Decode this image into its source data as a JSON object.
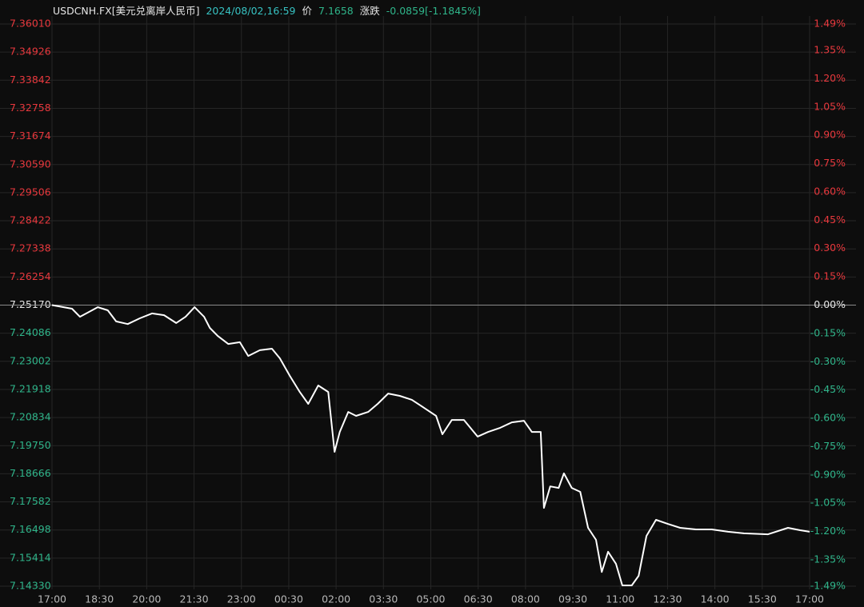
{
  "chart_data": {
    "type": "line",
    "header": {
      "symbol": "USDCNH.FX[美元兑离岸人民币]",
      "datetime": "2024/08/02,16:59",
      "price_label": "价",
      "price": "7.1658",
      "change_label": "涨跌",
      "change": "-0.0859[-1.1845%]"
    },
    "x": [
      0,
      38,
      53,
      68,
      87,
      106,
      122,
      144,
      167,
      190,
      213,
      236,
      254,
      271,
      289,
      300,
      315,
      335,
      357,
      373,
      395,
      418,
      433,
      452,
      471,
      487,
      506,
      525,
      537,
      547,
      563,
      578,
      601,
      619,
      639,
      661,
      684,
      707,
      730,
      742,
      760,
      783,
      809,
      829,
      852,
      874,
      897,
      912,
      929,
      935,
      947,
      963,
      973,
      988,
      1004,
      1019,
      1034,
      1045,
      1057,
      1072,
      1084,
      1102,
      1115,
      1130,
      1148,
      1171,
      1194,
      1224,
      1254,
      1285,
      1315,
      1361,
      1399,
      1422,
      1440
    ],
    "series": [
      {
        "color": "#ffffff",
        "values": [
          7.2517,
          7.2503,
          7.2472,
          7.2488,
          7.2509,
          7.2497,
          7.2454,
          7.2444,
          7.2466,
          7.2485,
          7.2478,
          7.2448,
          7.2472,
          7.2509,
          7.2472,
          7.2429,
          7.2398,
          7.2367,
          7.2374,
          7.2321,
          7.2343,
          7.2349,
          7.2312,
          7.2244,
          7.2182,
          7.2136,
          7.2207,
          7.2182,
          7.1951,
          7.2028,
          7.2105,
          7.209,
          7.2105,
          7.2136,
          7.2176,
          7.2167,
          7.2152,
          7.2121,
          7.209,
          7.2019,
          7.2074,
          7.2074,
          7.201,
          7.2028,
          7.2044,
          7.2065,
          7.2071,
          7.2028,
          7.2028,
          7.1735,
          7.1818,
          7.1812,
          7.1868,
          7.1812,
          7.1797,
          7.1658,
          7.1612,
          7.1488,
          7.1566,
          7.1519,
          7.1436,
          7.1436,
          7.1473,
          7.1627,
          7.1689,
          7.1673,
          7.1658,
          7.1652,
          7.1652,
          7.1643,
          7.1637,
          7.1633,
          7.1658,
          7.1649,
          7.1643
        ]
      }
    ],
    "xlim": [
      0,
      1440
    ],
    "xticks": [
      {
        "value": 0,
        "label": "17:00"
      },
      {
        "value": 90,
        "label": "18:30"
      },
      {
        "value": 180,
        "label": "20:00"
      },
      {
        "value": 270,
        "label": "21:30"
      },
      {
        "value": 360,
        "label": "23:00"
      },
      {
        "value": 450,
        "label": "00:30"
      },
      {
        "value": 540,
        "label": "02:00"
      },
      {
        "value": 630,
        "label": "03:30"
      },
      {
        "value": 720,
        "label": "05:00"
      },
      {
        "value": 810,
        "label": "06:30"
      },
      {
        "value": 900,
        "label": "08:00"
      },
      {
        "value": 990,
        "label": "09:30"
      },
      {
        "value": 1080,
        "label": "11:00"
      },
      {
        "value": 1170,
        "label": "12:30"
      },
      {
        "value": 1260,
        "label": "14:00"
      },
      {
        "value": 1350,
        "label": "15:30"
      },
      {
        "value": 1440,
        "label": "17:00"
      }
    ],
    "ylim": [
      7.1433,
      7.3601
    ],
    "yticks": [
      {
        "value": 7.3601,
        "label": "7.36010"
      },
      {
        "value": 7.34926,
        "label": "7.34926"
      },
      {
        "value": 7.33842,
        "label": "7.33842"
      },
      {
        "value": 7.32758,
        "label": "7.32758"
      },
      {
        "value": 7.31674,
        "label": "7.31674"
      },
      {
        "value": 7.3059,
        "label": "7.30590"
      },
      {
        "value": 7.29506,
        "label": "7.29506"
      },
      {
        "value": 7.28422,
        "label": "7.28422"
      },
      {
        "value": 7.27338,
        "label": "7.27338"
      },
      {
        "value": 7.26254,
        "label": "7.26254"
      },
      {
        "value": 7.2517,
        "label": "7.25170"
      },
      {
        "value": 7.24086,
        "label": "7.24086"
      },
      {
        "value": 7.23002,
        "label": "7.23002"
      },
      {
        "value": 7.21918,
        "label": "7.21918"
      },
      {
        "value": 7.20834,
        "label": "7.20834"
      },
      {
        "value": 7.1975,
        "label": "7.19750"
      },
      {
        "value": 7.18666,
        "label": "7.18666"
      },
      {
        "value": 7.17582,
        "label": "7.17582"
      },
      {
        "value": 7.16498,
        "label": "7.16498"
      },
      {
        "value": 7.15414,
        "label": "7.15414"
      },
      {
        "value": 7.1433,
        "label": "7.14330"
      }
    ],
    "y2lim": [
      -1.49,
      1.49
    ],
    "y2ticks": [
      {
        "value": 1.49,
        "label": "1.49%"
      },
      {
        "value": 1.35,
        "label": "1.35%"
      },
      {
        "value": 1.2,
        "label": "1.20%"
      },
      {
        "value": 1.05,
        "label": "1.05%"
      },
      {
        "value": 0.9,
        "label": "0.90%"
      },
      {
        "value": 0.75,
        "label": "0.75%"
      },
      {
        "value": 0.6,
        "label": "0.60%"
      },
      {
        "value": 0.45,
        "label": "0.45%"
      },
      {
        "value": 0.3,
        "label": "0.30%"
      },
      {
        "value": 0.15,
        "label": "0.15%"
      },
      {
        "value": 0,
        "label": "0.00%"
      },
      {
        "value": -0.15,
        "label": "-0.15%"
      },
      {
        "value": -0.3,
        "label": "-0.30%"
      },
      {
        "value": -0.45,
        "label": "-0.45%"
      },
      {
        "value": -0.6,
        "label": "-0.60%"
      },
      {
        "value": -0.75,
        "label": "-0.75%"
      },
      {
        "value": -0.9,
        "label": "-0.90%"
      },
      {
        "value": -1.05,
        "label": "-1.05%"
      },
      {
        "value": -1.2,
        "label": "-1.20%"
      },
      {
        "value": -1.35,
        "label": "-1.35%"
      },
      {
        "value": -1.49,
        "label": "-1.49%"
      }
    ],
    "grid": true,
    "up_color": "#e8383d",
    "down_color": "#2fb58a"
  }
}
